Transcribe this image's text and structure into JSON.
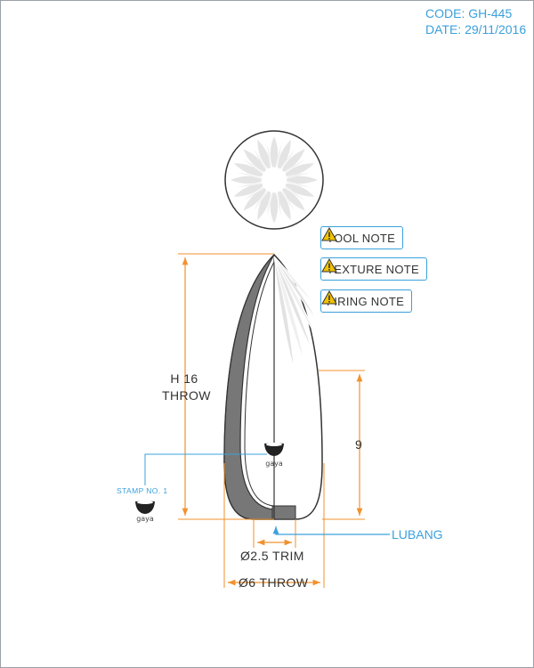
{
  "header": {
    "code": "CODE: GH-445",
    "date": "DATE: 29/11/2016"
  },
  "notes": [
    {
      "label": "TOOL NOTE",
      "icon": "warning-icon"
    },
    {
      "label": "TEXTURE NOTE",
      "icon": "warning-icon"
    },
    {
      "label": "FIRING NOTE",
      "icon": "warning-icon"
    }
  ],
  "dimensions": {
    "height_line1": "H 16",
    "height_line2": "THROW",
    "side_height": "9",
    "trim_diameter": "Ø2.5 TRIM",
    "throw_diameter": "Ø6 THROW"
  },
  "labels": {
    "stamp": "STAMP NO. 1",
    "lubang": "LUBANG",
    "stamp_mark_text": "gaya"
  },
  "colors": {
    "accent": "#3aa0dc",
    "dimension": "#f0922e",
    "outline": "#333333",
    "wall": "#777777",
    "petal": "#e4e4e4",
    "warning": "#f2c200"
  }
}
